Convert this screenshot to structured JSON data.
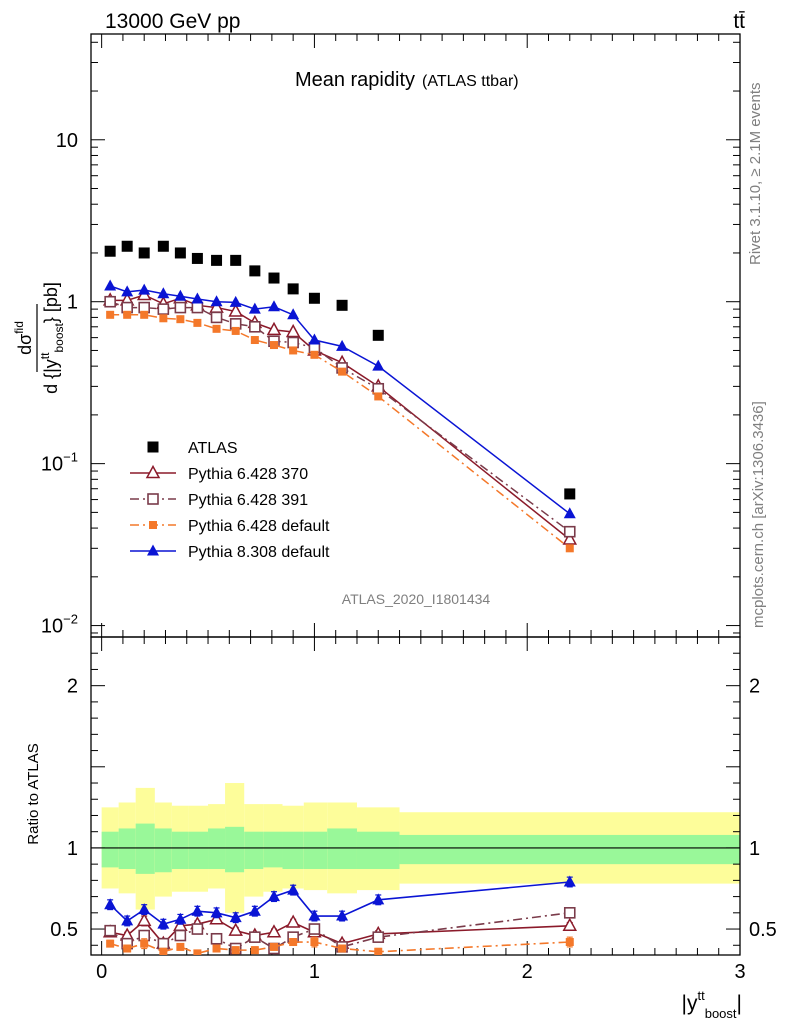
{
  "header": {
    "left": "13000 GeV pp",
    "right": "tt̄"
  },
  "side_labels": {
    "rivet": "Rivet 3.1.10, ≥ 2.1M events",
    "mcplots": "mcplots.cern.ch [arXiv:1306.3436]"
  },
  "colors": {
    "ATLAS": "#000000",
    "Pythia 6.428 370": "#8b1a2a",
    "Pythia 6.428 391": "#7a3b4a",
    "Pythia 6.428 default": "#f4782a",
    "Pythia 8.308 default": "#0a14d4",
    "band_inner": "#99f899",
    "band_outer": "#fdfd9a"
  },
  "chart_data": [
    {
      "panel": "main",
      "type": "scatter",
      "title": "Mean rapidity",
      "title_suffix": "(ATLAS ttbar)",
      "analysis_tag": "ATLAS_2020_I1801434",
      "ylabel_num": "dσ",
      "ylabel_num_sup": "fid",
      "ylabel_den": "d {|y",
      "ylabel_den_sup": "tt",
      "ylabel_den_sub": "boost",
      "ylabel_unit": "} [pb]",
      "yscale": "log",
      "xlim": [
        -0.05,
        3.0
      ],
      "ylim": [
        0.0085,
        45
      ],
      "yticks": [
        {
          "v": 0.01,
          "base": "10",
          "exp": "−2"
        },
        {
          "v": 0.1,
          "base": "10",
          "exp": "−1"
        },
        {
          "v": 1,
          "base": "1",
          "exp": ""
        },
        {
          "v": 10,
          "base": "10",
          "exp": ""
        }
      ],
      "legend_position": "lower-left",
      "x": [
        0.04,
        0.12,
        0.2,
        0.29,
        0.37,
        0.45,
        0.54,
        0.63,
        0.72,
        0.81,
        0.9,
        1.0,
        1.13,
        1.3,
        2.2
      ],
      "series": [
        {
          "name": "ATLAS",
          "marker": "square",
          "line": "none",
          "values": [
            2.05,
            2.2,
            2.0,
            2.2,
            2.0,
            1.85,
            1.8,
            1.8,
            1.55,
            1.4,
            1.2,
            1.05,
            0.95,
            0.62,
            0.065
          ]
        },
        {
          "name": "Pythia 6.428 370",
          "marker": "open-triangle",
          "line": "solid",
          "values": [
            1.02,
            1.02,
            1.1,
            0.97,
            1.05,
            0.95,
            0.92,
            0.87,
            0.74,
            0.67,
            0.65,
            0.5,
            0.42,
            0.3,
            0.034
          ]
        },
        {
          "name": "Pythia 6.428 391",
          "marker": "open-square",
          "line": "dashdot",
          "values": [
            1.0,
            0.92,
            0.92,
            0.9,
            0.92,
            0.92,
            0.8,
            0.73,
            0.7,
            0.57,
            0.56,
            0.52,
            0.39,
            0.29,
            0.038
          ]
        },
        {
          "name": "Pythia 6.428 default",
          "marker": "small-square",
          "line": "dashdot",
          "values": [
            0.83,
            0.83,
            0.83,
            0.79,
            0.78,
            0.74,
            0.68,
            0.66,
            0.58,
            0.54,
            0.5,
            0.47,
            0.37,
            0.26,
            0.03
          ]
        },
        {
          "name": "Pythia 8.308 default",
          "marker": "triangle",
          "line": "solid",
          "values": [
            1.25,
            1.15,
            1.18,
            1.12,
            1.08,
            1.04,
            1.0,
            0.99,
            0.9,
            0.93,
            0.83,
            0.58,
            0.53,
            0.4,
            0.049
          ]
        }
      ]
    },
    {
      "panel": "ratio",
      "type": "scatter",
      "ylabel": "Ratio to ATLAS",
      "xlabel_base": "|y",
      "xlabel_sup": "tt",
      "xlabel_sub": "boost",
      "xlabel_end": "|",
      "xlim": [
        -0.05,
        3.0
      ],
      "ylim": [
        0.34,
        2.3
      ],
      "xticks": [
        0,
        1,
        2,
        3
      ],
      "yticks": [
        0.5,
        1,
        2
      ],
      "reference_line": 1,
      "uncertainty_bands": {
        "edges": [
          0.0,
          0.08,
          0.16,
          0.25,
          0.33,
          0.41,
          0.5,
          0.58,
          0.67,
          0.76,
          0.85,
          0.95,
          1.06,
          1.2,
          1.4,
          3.0
        ],
        "inner_low": [
          0.88,
          0.87,
          0.84,
          0.85,
          0.87,
          0.87,
          0.87,
          0.85,
          0.87,
          0.88,
          0.87,
          0.87,
          0.87,
          0.87,
          0.9
        ],
        "inner_high": [
          1.1,
          1.12,
          1.15,
          1.12,
          1.1,
          1.1,
          1.12,
          1.13,
          1.1,
          1.1,
          1.1,
          1.1,
          1.12,
          1.1,
          1.08
        ],
        "outer_low": [
          0.75,
          0.72,
          0.62,
          0.7,
          0.73,
          0.73,
          0.75,
          0.6,
          0.7,
          0.73,
          0.75,
          0.74,
          0.72,
          0.74,
          0.78
        ],
        "outer_high": [
          1.25,
          1.28,
          1.37,
          1.28,
          1.26,
          1.26,
          1.27,
          1.4,
          1.27,
          1.27,
          1.26,
          1.28,
          1.28,
          1.25,
          1.22
        ]
      },
      "x": [
        0.04,
        0.12,
        0.2,
        0.29,
        0.37,
        0.45,
        0.54,
        0.63,
        0.72,
        0.81,
        0.9,
        1.0,
        1.13,
        1.3,
        2.2
      ],
      "series": [
        {
          "name": "Pythia 6.428 370",
          "marker": "open-triangle",
          "line": "solid",
          "values": [
            0.48,
            0.46,
            0.55,
            0.41,
            0.52,
            0.53,
            0.56,
            0.49,
            0.46,
            0.48,
            0.54,
            0.48,
            0.41,
            0.47,
            0.52
          ],
          "errors": [
            0.02,
            0.02,
            0.03,
            0.02,
            0.02,
            0.02,
            0.02,
            0.02,
            0.02,
            0.02,
            0.02,
            0.03,
            0.02,
            0.02,
            0.02
          ]
        },
        {
          "name": "Pythia 6.428 391",
          "marker": "open-square",
          "line": "dashdot",
          "values": [
            0.49,
            0.41,
            0.46,
            0.41,
            0.46,
            0.5,
            0.44,
            0.38,
            0.45,
            0.38,
            0.45,
            0.5,
            0.39,
            0.45,
            0.6
          ],
          "errors": [
            0.02,
            0.02,
            0.03,
            0.02,
            0.02,
            0.02,
            0.02,
            0.02,
            0.02,
            0.02,
            0.02,
            0.03,
            0.02,
            0.02,
            0.02
          ]
        },
        {
          "name": "Pythia 6.428 default",
          "marker": "small-square",
          "line": "dashdot",
          "values": [
            0.41,
            0.38,
            0.41,
            0.36,
            0.39,
            0.35,
            0.38,
            0.37,
            0.37,
            0.39,
            0.42,
            0.42,
            0.38,
            0.36,
            0.42
          ],
          "errors": [
            0.02,
            0.02,
            0.03,
            0.02,
            0.02,
            0.02,
            0.02,
            0.02,
            0.02,
            0.02,
            0.02,
            0.03,
            0.02,
            0.02,
            0.03
          ]
        },
        {
          "name": "Pythia 8.308 default",
          "marker": "triangle",
          "line": "solid",
          "values": [
            0.65,
            0.55,
            0.62,
            0.53,
            0.56,
            0.61,
            0.6,
            0.57,
            0.61,
            0.7,
            0.74,
            0.58,
            0.58,
            0.68,
            0.79
          ],
          "errors": [
            0.03,
            0.03,
            0.03,
            0.03,
            0.03,
            0.03,
            0.03,
            0.03,
            0.03,
            0.03,
            0.03,
            0.03,
            0.03,
            0.03,
            0.03
          ]
        }
      ]
    }
  ]
}
